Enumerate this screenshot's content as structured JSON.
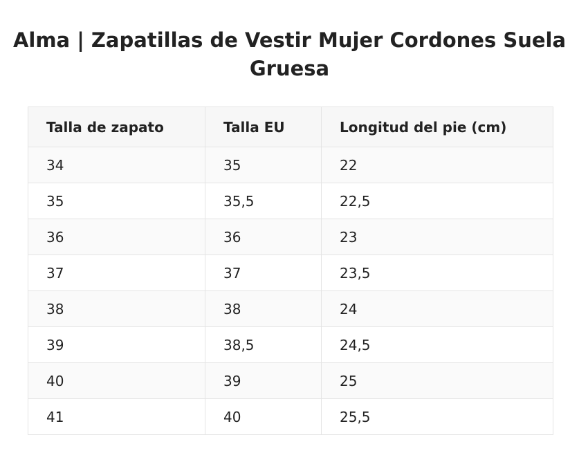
{
  "title": "Alma | Zapatillas de Vestir Mujer Cordones Suela Gruesa",
  "table": {
    "headers": [
      "Talla de zapato",
      "Talla EU",
      "Longitud del pie (cm)"
    ],
    "rows": [
      [
        "34",
        "35",
        "22"
      ],
      [
        "35",
        "35,5",
        "22,5"
      ],
      [
        "36",
        "36",
        "23"
      ],
      [
        "37",
        "37",
        "23,5"
      ],
      [
        "38",
        "38",
        "24"
      ],
      [
        "39",
        "38,5",
        "24,5"
      ],
      [
        "40",
        "39",
        "25"
      ],
      [
        "41",
        "40",
        "25,5"
      ]
    ]
  }
}
